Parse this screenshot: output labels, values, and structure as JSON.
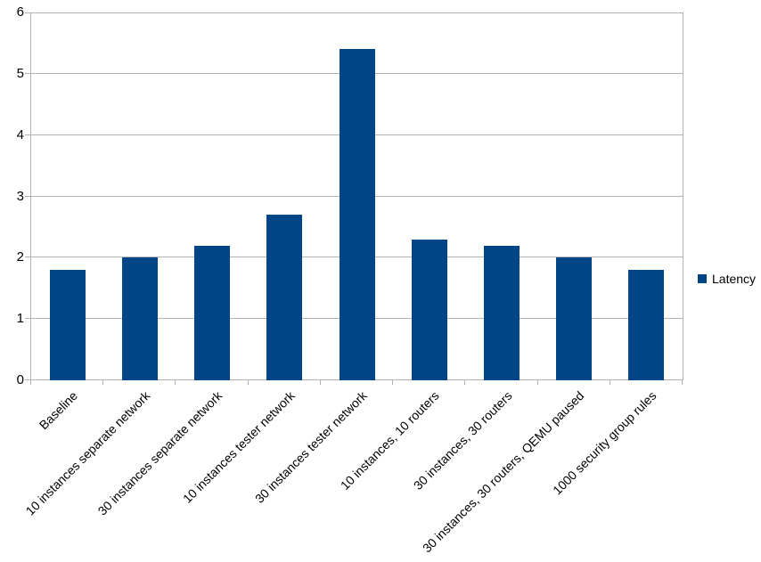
{
  "chart_data": {
    "type": "bar",
    "title": "",
    "xlabel": "",
    "ylabel": "",
    "categories": [
      "Baseline",
      "10 instances separate network",
      "30 instances separate network",
      "10 instances tester network",
      "30 instances tester network",
      "10 instances, 10 routers",
      "30 instances, 30 routers",
      "30 instances, 30 routers, QEMU paused",
      "1000 security group rules"
    ],
    "series": [
      {
        "name": "Latency",
        "color": "#004586",
        "values": [
          1.8,
          2.0,
          2.2,
          2.7,
          5.4,
          2.3,
          2.2,
          2.0,
          1.8
        ]
      }
    ],
    "ylim": [
      0,
      6
    ],
    "yticks": [
      0,
      1,
      2,
      3,
      4,
      5,
      6
    ],
    "grid": "horizontal",
    "legend": {
      "position": "right",
      "entries": [
        {
          "label": "Latency",
          "color": "#004586"
        }
      ]
    },
    "colors": {
      "gridline": "#b3b3b3",
      "axis": "#b3b3b3",
      "text": "#000000",
      "background": "#ffffff"
    }
  }
}
